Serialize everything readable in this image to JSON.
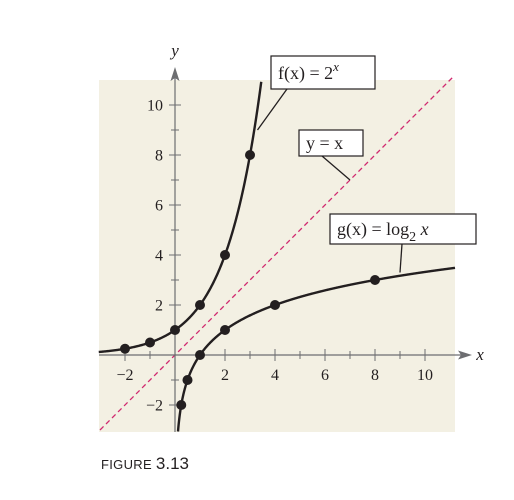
{
  "chart_data": {
    "type": "line",
    "xlabel": "x",
    "ylabel": "y",
    "xlim": [
      -3,
      11
    ],
    "ylim": [
      -3,
      11
    ],
    "x_ticks": [
      -2,
      2,
      4,
      6,
      8,
      10
    ],
    "y_ticks": [
      -2,
      2,
      4,
      6,
      8,
      10
    ],
    "x_minor_ticks": [
      -2,
      -1,
      1,
      2,
      3,
      4,
      5,
      6,
      7,
      8,
      9,
      10
    ],
    "y_minor_ticks": [
      -2,
      -1,
      1,
      2,
      3,
      4,
      5,
      6,
      7,
      8,
      9,
      10
    ],
    "grid": false,
    "background_color": "#f3f0e3",
    "series": [
      {
        "name": "f(x) = 2^x",
        "function": "exp2",
        "color": "#231f20",
        "points": [
          [
            -2,
            0.25
          ],
          [
            -1,
            0.5
          ],
          [
            0,
            1
          ],
          [
            1,
            2
          ],
          [
            2,
            4
          ],
          [
            3,
            8
          ]
        ],
        "label": {
          "prefix": "f(x) = 2",
          "sup": "x",
          "anchor": [
            3.3,
            10
          ]
        }
      },
      {
        "name": "y = x",
        "function": "identity",
        "style": "dashed",
        "color": "#d12a6f",
        "label": {
          "text": "y = x",
          "anchor": [
            7,
            7
          ]
        }
      },
      {
        "name": "g(x) = log2 x",
        "function": "log2",
        "color": "#231f20",
        "points": [
          [
            0.25,
            -2
          ],
          [
            0.5,
            -1
          ],
          [
            1,
            0
          ],
          [
            2,
            1
          ],
          [
            4,
            2
          ],
          [
            8,
            3
          ]
        ],
        "label": {
          "prefix": "g(x) = log",
          "sub": "2",
          "suffix": " x",
          "anchor": [
            9,
            3.3
          ]
        }
      }
    ]
  },
  "caption": {
    "word": "FIGURE",
    "number": "3.13"
  }
}
